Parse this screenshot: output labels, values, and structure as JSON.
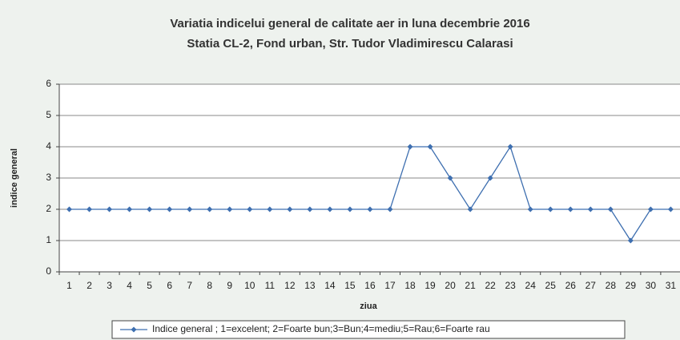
{
  "chart_data": {
    "type": "line",
    "title": "Variatia indicelui general de calitate aer in luna decembrie 2016",
    "subtitle": "Statia CL-2, Fond urban,  Str. Tudor Vladimirescu Calarasi",
    "x_label": "ziua",
    "y_label": "indice general",
    "categories": [
      "1",
      "2",
      "3",
      "4",
      "5",
      "6",
      "7",
      "8",
      "9",
      "10",
      "11",
      "12",
      "13",
      "14",
      "15",
      "16",
      "17",
      "18",
      "19",
      "20",
      "21",
      "22",
      "23",
      "24",
      "25",
      "26",
      "27",
      "28",
      "29",
      "30",
      "31"
    ],
    "series": [
      {
        "name": "Indice  general ; 1=excelent; 2=Foarte bun;3=Bun;4=mediu;5=Rau;6=Foarte rau",
        "color": "#3e6fb0",
        "values": [
          2,
          2,
          2,
          2,
          2,
          2,
          2,
          2,
          2,
          2,
          2,
          2,
          2,
          2,
          2,
          2,
          2,
          4,
          4,
          3,
          2,
          3,
          4,
          2,
          2,
          2,
          2,
          2,
          1,
          2,
          2
        ]
      }
    ],
    "ylim": [
      0,
      6
    ],
    "yticks": [
      0,
      1,
      2,
      3,
      4,
      5,
      6
    ],
    "grid": true,
    "legend": "bottom"
  }
}
